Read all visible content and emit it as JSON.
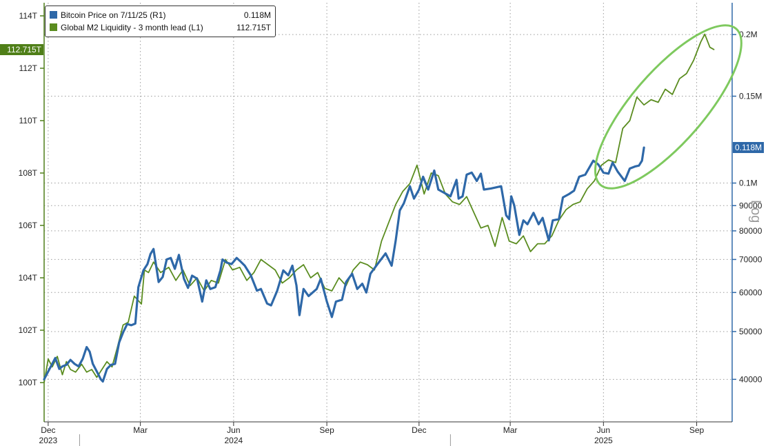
{
  "chart_data": {
    "type": "line",
    "colors": {
      "btc": "#2e68a8",
      "m2": "#5a8c1f",
      "highlight": "#7ec95e"
    },
    "series": [
      {
        "name": "Bitcoin Price on 7/11/25 (R1)",
        "last_label": "0.118M",
        "axis": "right",
        "color": "#2e68a8",
        "points": [
          [
            "2023-11-27",
            40000
          ],
          [
            "2023-12-01",
            41500
          ],
          [
            "2023-12-05",
            43000
          ],
          [
            "2023-12-08",
            44200
          ],
          [
            "2023-12-12",
            42000
          ],
          [
            "2023-12-15",
            42500
          ],
          [
            "2023-12-19",
            42800
          ],
          [
            "2023-12-23",
            43800
          ],
          [
            "2023-12-27",
            43000
          ],
          [
            "2023-12-31",
            42500
          ],
          [
            "2024-01-04",
            44000
          ],
          [
            "2024-01-08",
            46500
          ],
          [
            "2024-01-11",
            45500
          ],
          [
            "2024-01-14",
            43000
          ],
          [
            "2024-01-18",
            41500
          ],
          [
            "2024-01-22",
            40000
          ],
          [
            "2024-01-24",
            39600
          ],
          [
            "2024-01-28",
            42000
          ],
          [
            "2024-02-01",
            42800
          ],
          [
            "2024-02-05",
            43000
          ],
          [
            "2024-02-09",
            47500
          ],
          [
            "2024-02-13",
            49800
          ],
          [
            "2024-02-17",
            51800
          ],
          [
            "2024-02-21",
            51500
          ],
          [
            "2024-02-25",
            51900
          ],
          [
            "2024-02-28",
            61500
          ],
          [
            "2024-03-04",
            66500
          ],
          [
            "2024-03-08",
            68500
          ],
          [
            "2024-03-11",
            71800
          ],
          [
            "2024-03-14",
            73500
          ],
          [
            "2024-03-19",
            63000
          ],
          [
            "2024-03-23",
            64500
          ],
          [
            "2024-03-27",
            70000
          ],
          [
            "2024-03-31",
            70500
          ],
          [
            "2024-04-04",
            67000
          ],
          [
            "2024-04-08",
            71500
          ],
          [
            "2024-04-13",
            64000
          ],
          [
            "2024-04-17",
            61300
          ],
          [
            "2024-04-21",
            64900
          ],
          [
            "2024-04-26",
            64000
          ],
          [
            "2024-05-01",
            57500
          ],
          [
            "2024-05-05",
            63500
          ],
          [
            "2024-05-09",
            61000
          ],
          [
            "2024-05-14",
            61500
          ],
          [
            "2024-05-19",
            66500
          ],
          [
            "2024-05-21",
            70000
          ],
          [
            "2024-05-25",
            69000
          ],
          [
            "2024-05-30",
            68500
          ],
          [
            "2024-06-04",
            70500
          ],
          [
            "2024-06-08",
            69300
          ],
          [
            "2024-06-12",
            68000
          ],
          [
            "2024-06-18",
            65000
          ],
          [
            "2024-06-24",
            60500
          ],
          [
            "2024-06-28",
            61000
          ],
          [
            "2024-07-04",
            57000
          ],
          [
            "2024-07-08",
            56500
          ],
          [
            "2024-07-14",
            60500
          ],
          [
            "2024-07-20",
            66500
          ],
          [
            "2024-07-25",
            65000
          ],
          [
            "2024-07-29",
            68000
          ],
          [
            "2024-08-02",
            62000
          ],
          [
            "2024-08-05",
            54000
          ],
          [
            "2024-08-09",
            61000
          ],
          [
            "2024-08-14",
            59000
          ],
          [
            "2024-08-22",
            61000
          ],
          [
            "2024-08-26",
            64000
          ],
          [
            "2024-09-01",
            57500
          ],
          [
            "2024-09-06",
            53500
          ],
          [
            "2024-09-10",
            57500
          ],
          [
            "2024-09-16",
            58000
          ],
          [
            "2024-09-20",
            63000
          ],
          [
            "2024-09-26",
            65500
          ],
          [
            "2024-10-01",
            61000
          ],
          [
            "2024-10-06",
            62500
          ],
          [
            "2024-10-10",
            60000
          ],
          [
            "2024-10-14",
            65500
          ],
          [
            "2024-10-21",
            68500
          ],
          [
            "2024-10-29",
            72000
          ],
          [
            "2024-11-04",
            68000
          ],
          [
            "2024-11-08",
            76500
          ],
          [
            "2024-11-12",
            88000
          ],
          [
            "2024-11-16",
            91000
          ],
          [
            "2024-11-22",
            98500
          ],
          [
            "2024-11-26",
            93000
          ],
          [
            "2024-12-01",
            97000
          ],
          [
            "2024-12-05",
            103000
          ],
          [
            "2024-12-10",
            97000
          ],
          [
            "2024-12-16",
            106000
          ],
          [
            "2024-12-20",
            97000
          ],
          [
            "2024-12-26",
            95500
          ],
          [
            "2025-01-01",
            94000
          ],
          [
            "2025-01-07",
            101500
          ],
          [
            "2025-01-09",
            93000
          ],
          [
            "2025-01-13",
            94000
          ],
          [
            "2025-01-17",
            104000
          ],
          [
            "2025-01-22",
            105000
          ],
          [
            "2025-01-27",
            101000
          ],
          [
            "2025-01-31",
            104500
          ],
          [
            "2025-02-03",
            97000
          ],
          [
            "2025-02-10",
            97500
          ],
          [
            "2025-02-20",
            98500
          ],
          [
            "2025-02-25",
            86000
          ],
          [
            "2025-02-28",
            84500
          ],
          [
            "2025-03-02",
            94000
          ],
          [
            "2025-03-05",
            90000
          ],
          [
            "2025-03-10",
            78500
          ],
          [
            "2025-03-14",
            84000
          ],
          [
            "2025-03-18",
            82500
          ],
          [
            "2025-03-24",
            87000
          ],
          [
            "2025-03-29",
            82500
          ],
          [
            "2025-04-02",
            85000
          ],
          [
            "2025-04-08",
            76500
          ],
          [
            "2025-04-12",
            84000
          ],
          [
            "2025-04-18",
            84500
          ],
          [
            "2025-04-22",
            93500
          ],
          [
            "2025-04-28",
            95000
          ],
          [
            "2025-05-03",
            96500
          ],
          [
            "2025-05-08",
            103000
          ],
          [
            "2025-05-14",
            104000
          ],
          [
            "2025-05-22",
            111000
          ],
          [
            "2025-05-27",
            109000
          ],
          [
            "2025-06-01",
            105000
          ],
          [
            "2025-06-06",
            104500
          ],
          [
            "2025-06-10",
            110000
          ],
          [
            "2025-06-15",
            105500
          ],
          [
            "2025-06-22",
            101000
          ],
          [
            "2025-06-27",
            107000
          ],
          [
            "2025-07-02",
            108000
          ],
          [
            "2025-07-06",
            108500
          ],
          [
            "2025-07-09",
            111000
          ],
          [
            "2025-07-11",
            118000
          ]
        ]
      },
      {
        "name": "Global M2 Liquidity - 3 month lead (L1)",
        "last_label": "112.715T",
        "axis": "left",
        "color": "#5a8c1f",
        "points": [
          [
            "2023-11-27",
            100.0
          ],
          [
            "2023-12-01",
            100.9
          ],
          [
            "2023-12-05",
            100.6
          ],
          [
            "2023-12-10",
            101.0
          ],
          [
            "2023-12-15",
            100.3
          ],
          [
            "2023-12-19",
            100.8
          ],
          [
            "2023-12-23",
            100.5
          ],
          [
            "2023-12-28",
            100.4
          ],
          [
            "2024-01-03",
            100.7
          ],
          [
            "2024-01-08",
            100.4
          ],
          [
            "2024-01-13",
            100.5
          ],
          [
            "2024-01-18",
            100.2
          ],
          [
            "2024-01-23",
            100.5
          ],
          [
            "2024-01-28",
            100.8
          ],
          [
            "2024-02-02",
            100.6
          ],
          [
            "2024-02-07",
            101.3
          ],
          [
            "2024-02-13",
            102.2
          ],
          [
            "2024-02-18",
            102.3
          ],
          [
            "2024-02-24",
            103.3
          ],
          [
            "2024-03-02",
            103.0
          ],
          [
            "2024-03-05",
            104.3
          ],
          [
            "2024-03-09",
            104.2
          ],
          [
            "2024-03-14",
            104.6
          ],
          [
            "2024-03-21",
            104.2
          ],
          [
            "2024-03-29",
            104.4
          ],
          [
            "2024-04-05",
            103.9
          ],
          [
            "2024-04-12",
            104.3
          ],
          [
            "2024-04-19",
            103.7
          ],
          [
            "2024-04-26",
            104.0
          ],
          [
            "2024-05-03",
            103.5
          ],
          [
            "2024-05-10",
            103.9
          ],
          [
            "2024-05-17",
            103.8
          ],
          [
            "2024-05-24",
            104.7
          ],
          [
            "2024-05-31",
            104.3
          ],
          [
            "2024-06-07",
            104.4
          ],
          [
            "2024-06-14",
            103.9
          ],
          [
            "2024-06-21",
            104.2
          ],
          [
            "2024-06-28",
            104.7
          ],
          [
            "2024-07-05",
            104.5
          ],
          [
            "2024-07-12",
            104.3
          ],
          [
            "2024-07-19",
            103.8
          ],
          [
            "2024-07-26",
            104.0
          ],
          [
            "2024-08-02",
            104.3
          ],
          [
            "2024-08-09",
            104.5
          ],
          [
            "2024-08-16",
            104.0
          ],
          [
            "2024-08-23",
            104.2
          ],
          [
            "2024-08-30",
            103.6
          ],
          [
            "2024-09-06",
            103.5
          ],
          [
            "2024-09-13",
            104.0
          ],
          [
            "2024-09-20",
            103.7
          ],
          [
            "2024-09-27",
            104.3
          ],
          [
            "2024-10-04",
            104.6
          ],
          [
            "2024-10-11",
            104.5
          ],
          [
            "2024-10-18",
            104.3
          ],
          [
            "2024-10-25",
            105.4
          ],
          [
            "2024-11-01",
            106.1
          ],
          [
            "2024-11-08",
            106.8
          ],
          [
            "2024-11-15",
            107.3
          ],
          [
            "2024-11-22",
            107.6
          ],
          [
            "2024-11-29",
            108.3
          ],
          [
            "2024-12-06",
            107.2
          ],
          [
            "2024-12-13",
            108.0
          ],
          [
            "2024-12-20",
            107.9
          ],
          [
            "2024-12-27",
            107.2
          ],
          [
            "2025-01-03",
            106.9
          ],
          [
            "2025-01-10",
            106.8
          ],
          [
            "2025-01-17",
            107.1
          ],
          [
            "2025-01-24",
            106.5
          ],
          [
            "2025-01-31",
            105.9
          ],
          [
            "2025-02-07",
            106.0
          ],
          [
            "2025-02-14",
            105.2
          ],
          [
            "2025-02-21",
            106.3
          ],
          [
            "2025-02-28",
            105.4
          ],
          [
            "2025-03-07",
            105.3
          ],
          [
            "2025-03-14",
            105.6
          ],
          [
            "2025-03-21",
            105.0
          ],
          [
            "2025-03-28",
            105.3
          ],
          [
            "2025-04-04",
            105.3
          ],
          [
            "2025-04-11",
            105.6
          ],
          [
            "2025-04-18",
            106.2
          ],
          [
            "2025-04-25",
            106.6
          ],
          [
            "2025-05-02",
            106.8
          ],
          [
            "2025-05-09",
            106.9
          ],
          [
            "2025-05-16",
            107.4
          ],
          [
            "2025-05-23",
            107.7
          ],
          [
            "2025-05-30",
            108.3
          ],
          [
            "2025-06-06",
            108.5
          ],
          [
            "2025-06-13",
            108.4
          ],
          [
            "2025-06-20",
            109.7
          ],
          [
            "2025-06-27",
            110.0
          ],
          [
            "2025-07-04",
            110.9
          ],
          [
            "2025-07-11",
            110.6
          ],
          [
            "2025-07-18",
            110.8
          ],
          [
            "2025-07-25",
            110.7
          ],
          [
            "2025-08-01",
            111.2
          ],
          [
            "2025-08-08",
            111.0
          ],
          [
            "2025-08-15",
            111.6
          ],
          [
            "2025-08-22",
            111.8
          ],
          [
            "2025-08-29",
            112.3
          ],
          [
            "2025-09-05",
            113.0
          ],
          [
            "2025-09-09",
            113.3
          ],
          [
            "2025-09-14",
            112.8
          ],
          [
            "2025-09-18",
            112.715
          ]
        ]
      }
    ],
    "x_ticks": [
      {
        "date": "2023-12-01",
        "label": "Dec",
        "year": "2023"
      },
      {
        "date": "2024-03-01",
        "label": "Mar"
      },
      {
        "date": "2024-06-01",
        "label": "Jun",
        "year": "2024"
      },
      {
        "date": "2024-09-01",
        "label": "Sep"
      },
      {
        "date": "2024-12-01",
        "label": "Dec"
      },
      {
        "date": "2025-03-01",
        "label": "Mar"
      },
      {
        "date": "2025-06-01",
        "label": "Jun",
        "year": "2025"
      },
      {
        "date": "2025-09-01",
        "label": "Sep"
      }
    ],
    "xlim": [
      "2023-11-27",
      "2025-10-06"
    ],
    "left_axis": {
      "ticks": [
        100,
        102,
        104,
        106,
        108,
        110,
        112,
        114
      ],
      "labels": [
        "100T",
        "102T",
        "104T",
        "106T",
        "108T",
        "110T",
        "112T",
        "114T"
      ],
      "ylim": [
        98.5,
        114.5
      ]
    },
    "right_axis": {
      "scale": "log",
      "title": "Log",
      "ticks": [
        40000,
        50000,
        60000,
        70000,
        80000,
        90000,
        100000,
        150000,
        200000
      ],
      "labels": [
        "40000",
        "50000",
        "60000",
        "70000",
        "80000",
        "90000",
        "0.1M",
        "0.15M",
        "0.2M"
      ],
      "ylim": [
        32800,
        232000
      ]
    },
    "grid": true,
    "legend_position": "top-left",
    "annotation": {
      "shape": "ellipse",
      "around": "2025-06 to 2025-09",
      "color": "#7ec95e"
    }
  }
}
